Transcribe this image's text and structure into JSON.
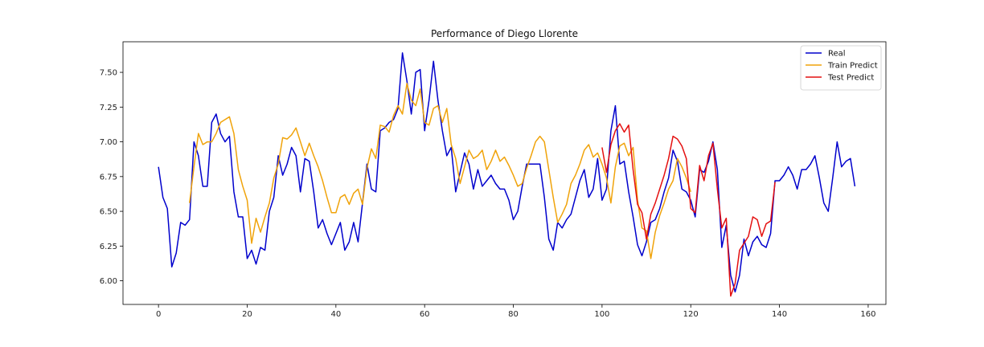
{
  "chart_data": {
    "type": "line",
    "title": "Performance of Diego Llorente",
    "xlabel": "",
    "ylabel": "",
    "xlim": [
      -8,
      164
    ],
    "ylim": [
      5.83,
      7.72
    ],
    "x_ticks": [
      0,
      20,
      40,
      60,
      80,
      100,
      120,
      140,
      160
    ],
    "y_ticks": [
      6.0,
      6.25,
      6.5,
      6.75,
      7.0,
      7.25,
      7.5
    ],
    "x_tick_labels": [
      "0",
      "20",
      "40",
      "60",
      "80",
      "100",
      "120",
      "140",
      "160"
    ],
    "y_tick_labels": [
      "6.00",
      "6.25",
      "6.50",
      "6.75",
      "7.00",
      "7.25",
      "7.50"
    ],
    "grid": false,
    "legend_position": "top-right",
    "series": [
      {
        "name": "Real",
        "color": "#0000cc",
        "x_start": 0,
        "values": [
          6.82,
          6.6,
          6.52,
          6.1,
          6.2,
          6.42,
          6.4,
          6.44,
          7.0,
          6.9,
          6.68,
          6.68,
          7.14,
          7.2,
          7.06,
          7.0,
          7.04,
          6.64,
          6.46,
          6.46,
          6.16,
          6.22,
          6.12,
          6.24,
          6.22,
          6.5,
          6.6,
          6.9,
          6.76,
          6.84,
          6.96,
          6.9,
          6.64,
          6.88,
          6.86,
          6.64,
          6.38,
          6.44,
          6.34,
          6.26,
          6.34,
          6.42,
          6.22,
          6.28,
          6.42,
          6.28,
          6.56,
          6.84,
          6.66,
          6.64,
          7.08,
          7.1,
          7.14,
          7.16,
          7.24,
          7.64,
          7.44,
          7.2,
          7.5,
          7.52,
          7.08,
          7.3,
          7.58,
          7.3,
          7.08,
          6.9,
          6.96,
          6.64,
          6.78,
          6.92,
          6.84,
          6.66,
          6.8,
          6.68,
          6.72,
          6.76,
          6.7,
          6.66,
          6.66,
          6.58,
          6.44,
          6.5,
          6.68,
          6.84,
          6.84,
          6.84,
          6.84,
          6.6,
          6.3,
          6.22,
          6.42,
          6.38,
          6.44,
          6.48,
          6.6,
          6.72,
          6.8,
          6.6,
          6.66,
          6.88,
          6.58,
          6.66,
          7.08,
          7.26,
          6.84,
          6.86,
          6.64,
          6.46,
          6.26,
          6.18,
          6.28,
          6.42,
          6.44,
          6.52,
          6.64,
          6.74,
          6.94,
          6.86,
          6.66,
          6.64,
          6.58,
          6.46,
          6.8,
          6.78,
          6.86,
          7.0,
          6.8,
          6.24,
          6.4,
          6.04,
          5.92,
          6.04,
          6.3,
          6.18,
          6.28,
          6.32,
          6.26,
          6.24,
          6.34,
          6.72,
          6.72,
          6.76,
          6.82,
          6.76,
          6.66,
          6.8,
          6.8,
          6.84,
          6.9,
          6.74,
          6.56,
          6.5,
          6.74,
          7.0,
          6.82,
          6.86,
          6.88,
          6.68
        ]
      },
      {
        "name": "Train Predict",
        "color": "#f0a30a",
        "x_start": 7,
        "values": [
          6.56,
          6.82,
          7.06,
          6.98,
          7.0,
          7.0,
          7.06,
          7.14,
          7.16,
          7.18,
          7.06,
          6.8,
          6.68,
          6.58,
          6.27,
          6.45,
          6.35,
          6.46,
          6.56,
          6.74,
          6.84,
          7.03,
          7.02,
          7.05,
          7.1,
          7.0,
          6.9,
          6.99,
          6.9,
          6.82,
          6.72,
          6.6,
          6.49,
          6.49,
          6.6,
          6.62,
          6.55,
          6.63,
          6.66,
          6.55,
          6.81,
          6.95,
          6.88,
          7.12,
          7.11,
          7.07,
          7.19,
          7.26,
          7.2,
          7.42,
          7.3,
          7.26,
          7.38,
          7.14,
          7.12,
          7.24,
          7.26,
          7.14,
          7.24,
          6.98,
          6.88,
          6.7,
          6.82,
          6.94,
          6.88,
          6.9,
          6.94,
          6.8,
          6.86,
          6.94,
          6.86,
          6.89,
          6.83,
          6.76,
          6.68,
          6.7,
          6.81,
          6.9,
          7.0,
          7.04,
          7.0,
          6.8,
          6.6,
          6.42,
          6.48,
          6.55,
          6.7,
          6.76,
          6.84,
          6.94,
          6.98,
          6.89,
          6.92,
          6.84,
          6.74,
          6.56,
          6.82,
          6.97,
          6.99,
          6.9,
          6.96,
          6.58,
          6.38,
          6.36,
          6.16,
          6.35,
          6.47,
          6.56,
          6.66,
          6.72,
          6.88,
          6.82,
          6.74,
          6.64
        ]
      },
      {
        "name": "Test Predict",
        "color": "#e41010",
        "x_start": 100,
        "values": [
          6.96,
          6.78,
          6.98,
          7.08,
          7.13,
          7.07,
          7.12,
          6.8,
          6.55,
          6.49,
          6.3,
          6.48,
          6.56,
          6.66,
          6.76,
          6.88,
          7.04,
          7.02,
          6.97,
          6.88,
          6.52,
          6.49,
          6.83,
          6.72,
          6.9,
          6.99,
          6.66,
          6.38,
          6.45,
          5.89,
          5.98,
          6.22,
          6.27,
          6.32,
          6.46,
          6.44,
          6.32,
          6.41,
          6.43,
          6.71
        ]
      }
    ]
  }
}
